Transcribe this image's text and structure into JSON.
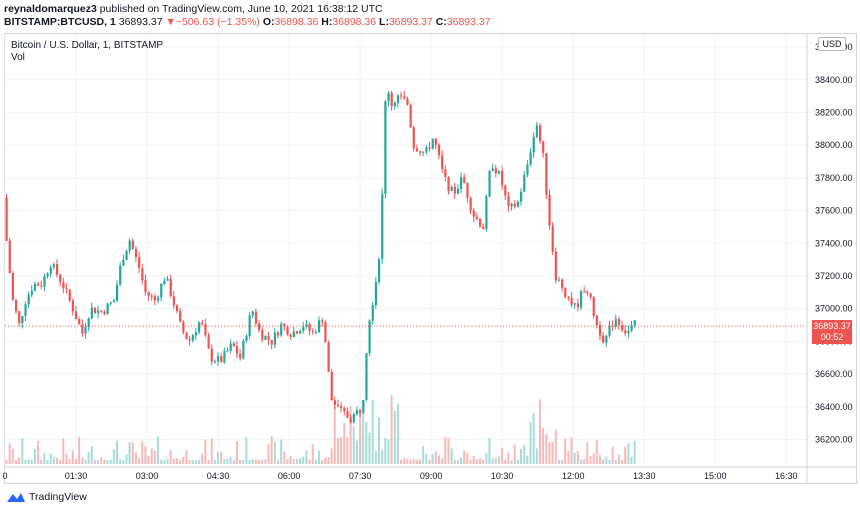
{
  "header": {
    "publisher": "reynaldomarquez3",
    "published_text": " published on TradingView.com, June 10, 2021 16:38:12 UTC",
    "symbol": "BITSTAMP:BTCUSD, 1",
    "last": "36893.37",
    "change": "−506.63 (−1.35%)",
    "o_label": "O:",
    "o_val": "36898.36",
    "h_label": "H:",
    "h_val": "36898.36",
    "l_label": "L:",
    "l_val": "36893.37",
    "c_label": "C:",
    "c_val": "36893.37"
  },
  "legend": {
    "title": "Bitcoin / U.S. Dollar, 1, BITSTAMP",
    "volume": "Vol"
  },
  "price_axis": {
    "currency": "USD",
    "last_price": "36893.37",
    "countdown": "00:52"
  },
  "footer": {
    "brand": "TradingView"
  },
  "colors": {
    "up": "#26a69a",
    "down": "#ef5350",
    "up_vol": "#a8dcd6",
    "down_vol": "#f7b9b7"
  },
  "chart_data": {
    "type": "candlestick",
    "y_axis": {
      "ticks": [
        36200,
        36400,
        36600,
        36800,
        37000,
        37200,
        37400,
        37600,
        37800,
        38000,
        38200,
        38400,
        38600
      ],
      "range": [
        36050,
        38680
      ],
      "label": "USD"
    },
    "x_axis": {
      "tick_labels": [
        "0",
        "01:30",
        "03:00",
        "04:30",
        "06:00",
        "07:30",
        "09:00",
        "10:30",
        "12:00",
        "13:30",
        "15:00",
        "16:30"
      ],
      "range_minutes": [
        0,
        1015
      ]
    },
    "last_price": 36893.37,
    "price_path": [
      [
        0,
        37680
      ],
      [
        5,
        37350
      ],
      [
        12,
        37050
      ],
      [
        20,
        36900
      ],
      [
        28,
        37050
      ],
      [
        38,
        37150
      ],
      [
        48,
        37150
      ],
      [
        60,
        37280
      ],
      [
        75,
        37150
      ],
      [
        88,
        37000
      ],
      [
        100,
        36850
      ],
      [
        110,
        37000
      ],
      [
        125,
        36980
      ],
      [
        140,
        37050
      ],
      [
        150,
        37300
      ],
      [
        160,
        37420
      ],
      [
        172,
        37250
      ],
      [
        180,
        37100
      ],
      [
        192,
        37050
      ],
      [
        205,
        37200
      ],
      [
        215,
        37050
      ],
      [
        225,
        36880
      ],
      [
        235,
        36800
      ],
      [
        250,
        36930
      ],
      [
        262,
        36700
      ],
      [
        275,
        36680
      ],
      [
        290,
        36780
      ],
      [
        300,
        36700
      ],
      [
        315,
        37000
      ],
      [
        325,
        36850
      ],
      [
        340,
        36800
      ],
      [
        352,
        36900
      ],
      [
        365,
        36850
      ],
      [
        380,
        36900
      ],
      [
        392,
        36850
      ],
      [
        405,
        36950
      ],
      [
        415,
        36450
      ],
      [
        425,
        36380
      ],
      [
        440,
        36330
      ],
      [
        455,
        36400
      ],
      [
        462,
        36900
      ],
      [
        470,
        37100
      ],
      [
        478,
        37400
      ],
      [
        485,
        38400
      ],
      [
        492,
        38250
      ],
      [
        500,
        38300
      ],
      [
        512,
        38250
      ],
      [
        520,
        38000
      ],
      [
        535,
        37950
      ],
      [
        545,
        38050
      ],
      [
        558,
        37800
      ],
      [
        570,
        37700
      ],
      [
        582,
        37800
      ],
      [
        595,
        37580
      ],
      [
        608,
        37500
      ],
      [
        618,
        37900
      ],
      [
        630,
        37800
      ],
      [
        640,
        37600
      ],
      [
        652,
        37650
      ],
      [
        665,
        37900
      ],
      [
        675,
        38150
      ],
      [
        685,
        37900
      ],
      [
        690,
        37600
      ],
      [
        700,
        37200
      ],
      [
        712,
        37100
      ],
      [
        725,
        37000
      ],
      [
        738,
        37150
      ],
      [
        752,
        36900
      ],
      [
        762,
        36800
      ],
      [
        775,
        36950
      ],
      [
        790,
        36850
      ],
      [
        800,
        36900
      ]
    ]
  }
}
